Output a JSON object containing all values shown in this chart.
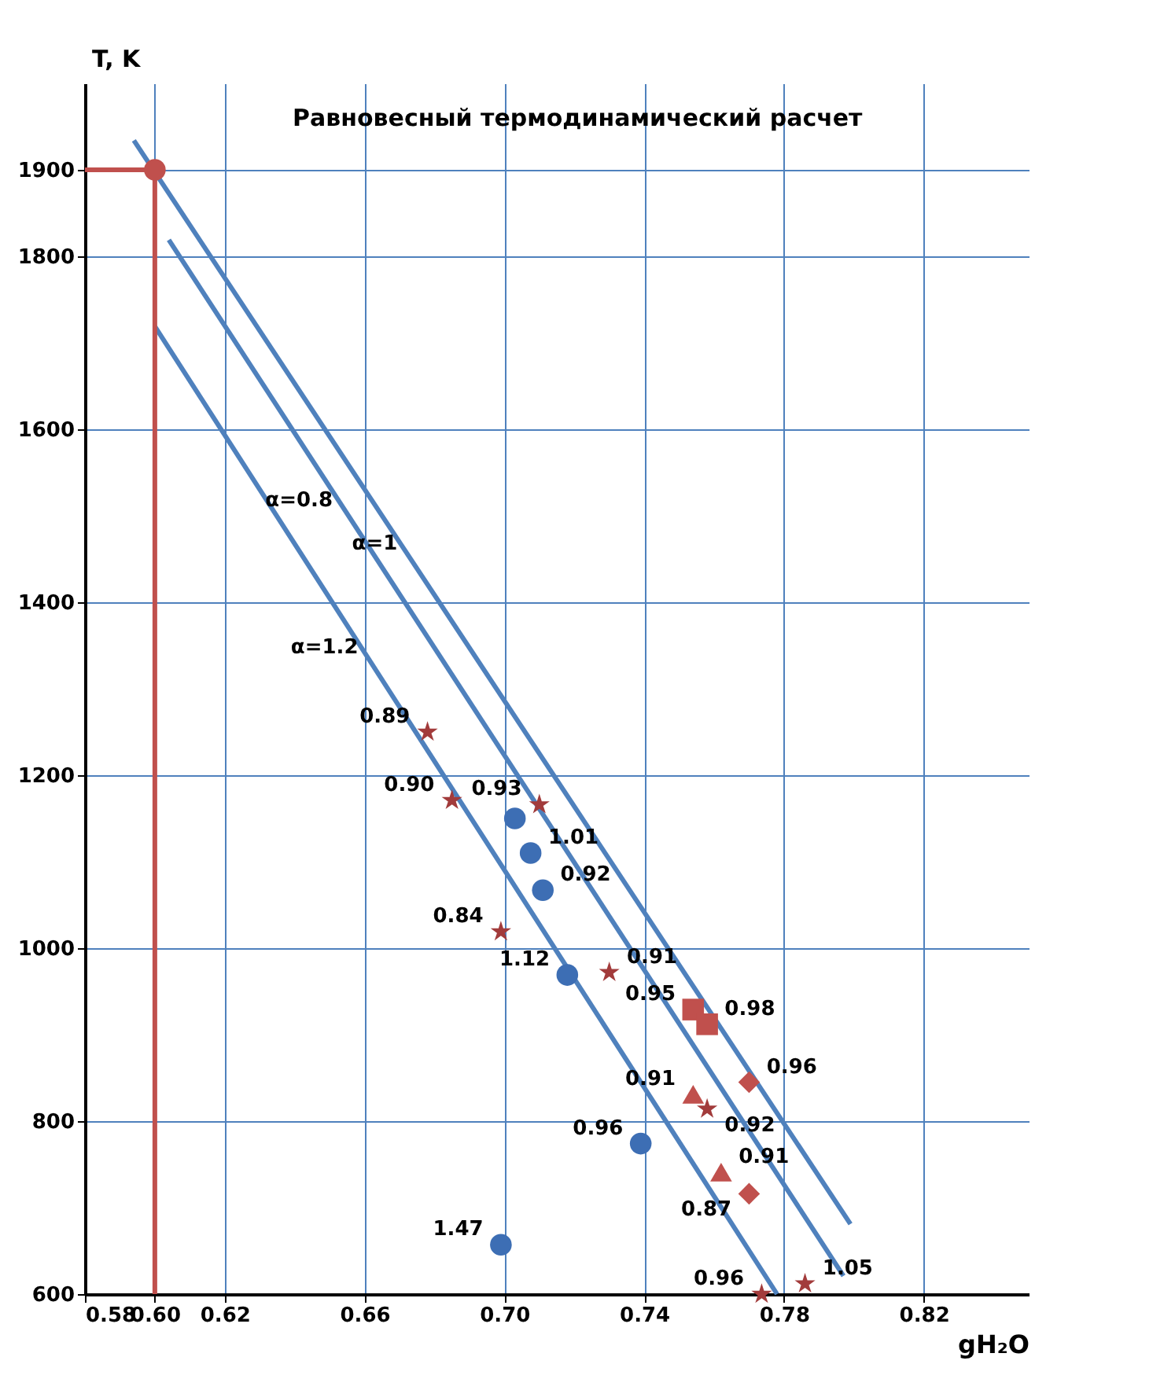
{
  "chart_data": {
    "type": "scatter",
    "xlabel": "gH₂O",
    "ylabel": "T, K",
    "xlim": [
      0.58,
      0.85
    ],
    "ylim": [
      600,
      2000
    ],
    "xticks": [
      {
        "value": 0.58,
        "label": "0.58"
      },
      {
        "value": 0.6,
        "label": "0.60"
      },
      {
        "value": 0.62,
        "label": "0.62"
      },
      {
        "value": 0.66,
        "label": "0.66"
      },
      {
        "value": 0.7,
        "label": "0.70"
      },
      {
        "value": 0.74,
        "label": "0.74"
      },
      {
        "value": 0.78,
        "label": "0.78"
      },
      {
        "value": 0.82,
        "label": "0.82"
      }
    ],
    "yticks": [
      600,
      800,
      1000,
      1200,
      1400,
      1600,
      1800,
      1900
    ],
    "grid": true,
    "series": [
      {
        "type": "line",
        "color": "#4f81bd",
        "x": [
          0.594,
          0.799
        ],
        "values": [
          1934,
          681
        ]
      },
      {
        "type": "line",
        "color": "#4f81bd",
        "x": [
          0.604,
          0.797
        ],
        "values": [
          1819,
          621
        ]
      },
      {
        "type": "line",
        "color": "#4f81bd",
        "x": [
          0.6,
          0.778
        ],
        "values": [
          1719,
          600
        ]
      },
      {
        "type": "line",
        "color": "#c0504d",
        "x": [
          0.58,
          0.6,
          0.6
        ],
        "values": [
          1900,
          1900,
          600
        ]
      },
      {
        "marker": "circle",
        "color": "#3d6eb4",
        "x": [
          0.703,
          0.7075,
          0.711,
          0.718,
          0.739,
          0.699
        ],
        "values": [
          1150,
          1110,
          1067,
          969,
          774,
          657
        ]
      },
      {
        "marker": "star",
        "color": "#a23b3b",
        "x": [
          0.678,
          0.685,
          0.71,
          0.699,
          0.73,
          0.758,
          0.7736,
          0.786
        ],
        "values": [
          1250,
          1171,
          1166,
          1019,
          972,
          814,
          600,
          612
        ]
      },
      {
        "marker": "square",
        "color": "#c0504d",
        "x": [
          0.754,
          0.758
        ],
        "values": [
          929,
          912
        ]
      },
      {
        "marker": "triangle",
        "color": "#c0504d",
        "x": [
          0.754,
          0.762
        ],
        "values": [
          831,
          741
        ]
      },
      {
        "marker": "diamond",
        "color": "#c0504d",
        "x": [
          0.77,
          0.77
        ],
        "values": [
          845,
          716
        ]
      },
      {
        "marker": "circle",
        "color": "#c0504d",
        "x": [
          0.6
        ],
        "values": [
          1900
        ]
      }
    ],
    "annotations": [
      "Равновесный термодинамический расчет",
      {
        "text": "α=0.8",
        "x": 0.6554,
        "y": 1500
      },
      {
        "text": "α=1",
        "x": 0.6732,
        "y": 1450
      },
      {
        "text": "α=1.2",
        "x": 0.6627,
        "y": 1330
      },
      {
        "text": "1.01",
        "x": 0.7075,
        "y": 1110
      },
      {
        "text": "0.92",
        "x": 0.711,
        "y": 1067
      },
      {
        "text": "1.12",
        "x": 0.718,
        "y": 969
      },
      {
        "text": "0.96",
        "x": 0.739,
        "y": 774
      },
      {
        "text": "1.47",
        "x": 0.699,
        "y": 657
      },
      {
        "text": "0.89",
        "x": 0.678,
        "y": 1250
      },
      {
        "text": "0.90",
        "x": 0.685,
        "y": 1171
      },
      {
        "text": "0.93",
        "x": 0.71,
        "y": 1166
      },
      {
        "text": "0.84",
        "x": 0.699,
        "y": 1019
      },
      {
        "text": "0.91",
        "x": 0.73,
        "y": 972
      },
      {
        "text": "0.92",
        "x": 0.758,
        "y": 814
      },
      {
        "text": "0.96",
        "x": 0.7736,
        "y": 600
      },
      {
        "text": "1.05",
        "x": 0.786,
        "y": 612
      },
      {
        "text": "0.95",
        "x": 0.754,
        "y": 929
      },
      {
        "text": "0.98",
        "x": 0.758,
        "y": 912
      },
      {
        "text": "0.91",
        "x": 0.754,
        "y": 831
      },
      {
        "text": "0.91",
        "x": 0.762,
        "y": 741
      },
      {
        "text": "0.96",
        "x": 0.77,
        "y": 845
      },
      {
        "text": "0.87",
        "x": 0.77,
        "y": 716
      }
    ]
  }
}
